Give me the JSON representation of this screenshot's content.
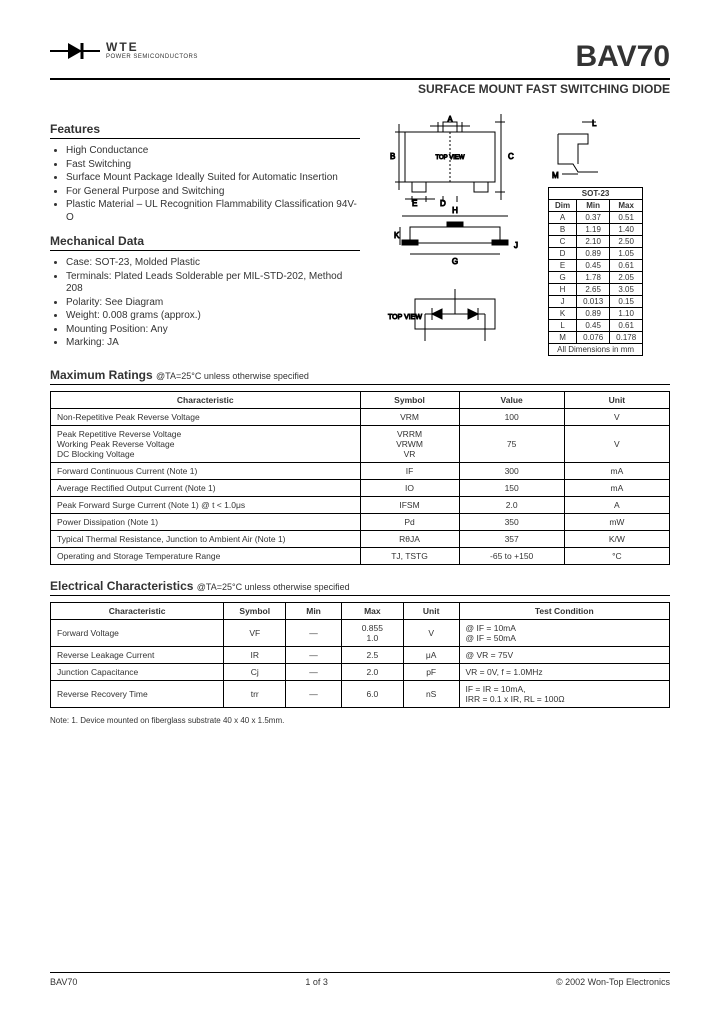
{
  "logo": {
    "brand": "WTE",
    "tagline": "POWER SEMICONDUCTORS"
  },
  "part_number": "BAV70",
  "subtitle": "SURFACE MOUNT FAST SWITCHING DIODE",
  "features": {
    "heading": "Features",
    "items": [
      "High Conductance",
      "Fast Switching",
      "Surface Mount Package Ideally Suited for Automatic Insertion",
      "For General Purpose and Switching",
      "Plastic Material – UL Recognition Flammability Classification 94V-O"
    ]
  },
  "mechanical": {
    "heading": "Mechanical Data",
    "items": [
      "Case: SOT-23, Molded Plastic",
      "Terminals: Plated Leads Solderable per MIL-STD-202, Method 208",
      "Polarity: See Diagram",
      "Weight: 0.008 grams (approx.)",
      "Mounting Position: Any",
      "Marking: JA"
    ]
  },
  "package": {
    "label_topview": "TOP VIEW",
    "label_inside": "TOP VIEW"
  },
  "dims": {
    "title": "SOT-23",
    "header": [
      "Dim",
      "Min",
      "Max"
    ],
    "rows": [
      [
        "A",
        "0.37",
        "0.51"
      ],
      [
        "B",
        "1.19",
        "1.40"
      ],
      [
        "C",
        "2.10",
        "2.50"
      ],
      [
        "D",
        "0.89",
        "1.05"
      ],
      [
        "E",
        "0.45",
        "0.61"
      ],
      [
        "G",
        "1.78",
        "2.05"
      ],
      [
        "H",
        "2.65",
        "3.05"
      ],
      [
        "J",
        "0.013",
        "0.15"
      ],
      [
        "K",
        "0.89",
        "1.10"
      ],
      [
        "L",
        "0.45",
        "0.61"
      ],
      [
        "M",
        "0.076",
        "0.178"
      ]
    ],
    "footer": "All Dimensions in mm"
  },
  "maxratings": {
    "heading": "Maximum Ratings",
    "cond": "@TA=25°C unless otherwise specified",
    "header": [
      "Characteristic",
      "Symbol",
      "Value",
      "Unit"
    ],
    "rows": [
      {
        "c": "Non-Repetitive Peak Reverse Voltage",
        "s": "VRM",
        "v": "100",
        "u": "V"
      },
      {
        "c": "Peak Repetitive Reverse Voltage\nWorking Peak Reverse Voltage\nDC Blocking Voltage",
        "s": "VRRM\nVRWM\nVR",
        "v": "75",
        "u": "V"
      },
      {
        "c": "Forward Continuous Current (Note 1)",
        "s": "IF",
        "v": "300",
        "u": "mA"
      },
      {
        "c": "Average Rectified Output Current (Note 1)",
        "s": "IO",
        "v": "150",
        "u": "mA"
      },
      {
        "c": "Peak Forward Surge Current (Note 1)              @ t < 1.0μs",
        "s": "IFSM",
        "v": "2.0",
        "u": "A"
      },
      {
        "c": "Power Dissipation (Note 1)",
        "s": "Pd",
        "v": "350",
        "u": "mW"
      },
      {
        "c": "Typical Thermal Resistance, Junction to Ambient Air (Note 1)",
        "s": "RθJA",
        "v": "357",
        "u": "K/W"
      },
      {
        "c": "Operating and Storage Temperature Range",
        "s": "TJ, TSTG",
        "v": "-65 to +150",
        "u": "°C"
      }
    ]
  },
  "elec": {
    "heading": "Electrical Characteristics",
    "cond": "@TA=25°C unless otherwise specified",
    "header": [
      "Characteristic",
      "Symbol",
      "Min",
      "Max",
      "Unit",
      "Test Condition"
    ],
    "rows": [
      {
        "c": "Forward Voltage",
        "s": "VF",
        "min": "—",
        "max": "0.855\n1.0",
        "u": "V",
        "t": "@ IF = 10mA\n@ IF = 50mA"
      },
      {
        "c": "Reverse Leakage Current",
        "s": "IR",
        "min": "—",
        "max": "2.5",
        "u": "μA",
        "t": "@ VR = 75V"
      },
      {
        "c": "Junction Capacitance",
        "s": "Cj",
        "min": "—",
        "max": "2.0",
        "u": "pF",
        "t": "VR = 0V, f = 1.0MHz"
      },
      {
        "c": "Reverse Recovery Time",
        "s": "trr",
        "min": "—",
        "max": "6.0",
        "u": "nS",
        "t": "IF = IR = 10mA,\nIRR = 0.1 x IR, RL = 100Ω"
      }
    ]
  },
  "note": "Note:  1. Device mounted on fiberglass substrate 40 x 40 x 1.5mm.",
  "footer": {
    "left": "BAV70",
    "center": "1 of 3",
    "right": "© 2002 Won-Top Electronics"
  }
}
